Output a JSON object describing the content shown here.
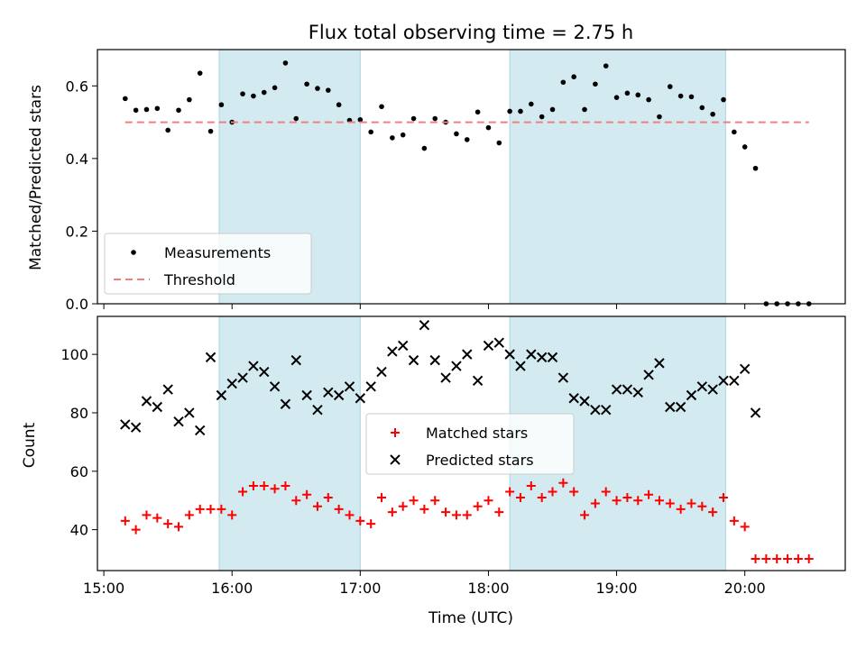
{
  "chart_data": [
    {
      "type": "scatter",
      "title": "Flux total observing time = 2.75 h",
      "ylabel": "Matched/Predicted stars",
      "xlabel": "",
      "xlim": [
        "14:57",
        "20:47"
      ],
      "ylim": [
        0,
        0.7
      ],
      "yticks": [
        "0.0",
        "0.2",
        "0.4",
        "0.6"
      ],
      "grid": false,
      "legend_position": "lower-left",
      "shaded_intervals": [
        [
          "15:54",
          "17:00"
        ],
        [
          "18:10",
          "19:51"
        ]
      ],
      "series": [
        {
          "name": "Measurements",
          "kind": "scatter",
          "marker": "dot",
          "color": "#000000",
          "points": [
            [
              "15:10",
              0.565
            ],
            [
              "15:15",
              0.533
            ],
            [
              "15:20",
              0.535
            ],
            [
              "15:25",
              0.538
            ],
            [
              "15:30",
              0.478
            ],
            [
              "15:35",
              0.533
            ],
            [
              "15:40",
              0.562
            ],
            [
              "15:45",
              0.635
            ],
            [
              "15:50",
              0.475
            ],
            [
              "15:55",
              0.548
            ],
            [
              "16:00",
              0.5
            ],
            [
              "16:05",
              0.578
            ],
            [
              "16:10",
              0.572
            ],
            [
              "16:15",
              0.582
            ],
            [
              "16:20",
              0.595
            ],
            [
              "16:25",
              0.663
            ],
            [
              "16:30",
              0.51
            ],
            [
              "16:35",
              0.605
            ],
            [
              "16:40",
              0.593
            ],
            [
              "16:45",
              0.588
            ],
            [
              "16:50",
              0.548
            ],
            [
              "16:55",
              0.505
            ],
            [
              "17:00",
              0.507
            ],
            [
              "17:05",
              0.473
            ],
            [
              "17:10",
              0.543
            ],
            [
              "17:15",
              0.457
            ],
            [
              "17:20",
              0.465
            ],
            [
              "17:25",
              0.51
            ],
            [
              "17:30",
              0.428
            ],
            [
              "17:35",
              0.51
            ],
            [
              "17:40",
              0.5
            ],
            [
              "17:45",
              0.468
            ],
            [
              "17:50",
              0.452
            ],
            [
              "17:55",
              0.528
            ],
            [
              "18:00",
              0.485
            ],
            [
              "18:05",
              0.443
            ],
            [
              "18:10",
              0.53
            ],
            [
              "18:15",
              0.53
            ],
            [
              "18:20",
              0.55
            ],
            [
              "18:25",
              0.515
            ],
            [
              "18:30",
              0.535
            ],
            [
              "18:35",
              0.61
            ],
            [
              "18:40",
              0.625
            ],
            [
              "18:45",
              0.535
            ],
            [
              "18:50",
              0.605
            ],
            [
              "18:55",
              0.655
            ],
            [
              "19:00",
              0.568
            ],
            [
              "19:05",
              0.58
            ],
            [
              "19:10",
              0.575
            ],
            [
              "19:15",
              0.562
            ],
            [
              "19:20",
              0.515
            ],
            [
              "19:25",
              0.598
            ],
            [
              "19:30",
              0.572
            ],
            [
              "19:35",
              0.57
            ],
            [
              "19:40",
              0.54
            ],
            [
              "19:45",
              0.522
            ],
            [
              "19:50",
              0.562
            ],
            [
              "19:55",
              0.473
            ],
            [
              "20:00",
              0.432
            ],
            [
              "20:05",
              0.373
            ],
            [
              "20:10",
              0.0
            ],
            [
              "20:15",
              0.0
            ],
            [
              "20:20",
              0.0
            ],
            [
              "20:25",
              0.0
            ],
            [
              "20:30",
              0.0
            ]
          ]
        },
        {
          "name": "Threshold",
          "kind": "line",
          "style": "dashed",
          "color": "#f08080",
          "points": [
            [
              "15:10",
              0.5
            ],
            [
              "20:30",
              0.5
            ]
          ]
        }
      ]
    },
    {
      "type": "scatter",
      "title": "",
      "ylabel": "Count",
      "xlabel": "Time (UTC)",
      "xlim": [
        "14:57",
        "20:47"
      ],
      "ylim": [
        26,
        113
      ],
      "yticks": [
        "40",
        "60",
        "80",
        "100"
      ],
      "xticks": [
        "15:00",
        "16:00",
        "17:00",
        "18:00",
        "19:00",
        "20:00"
      ],
      "grid": false,
      "legend_position": "center",
      "shaded_intervals": [
        [
          "15:54",
          "17:00"
        ],
        [
          "18:10",
          "19:51"
        ]
      ],
      "series": [
        {
          "name": "Matched stars",
          "kind": "scatter",
          "marker": "plus",
          "color": "#ff0000",
          "points": [
            [
              "15:10",
              43
            ],
            [
              "15:15",
              40
            ],
            [
              "15:20",
              45
            ],
            [
              "15:25",
              44
            ],
            [
              "15:30",
              42
            ],
            [
              "15:35",
              41
            ],
            [
              "15:40",
              45
            ],
            [
              "15:45",
              47
            ],
            [
              "15:50",
              47
            ],
            [
              "15:55",
              47
            ],
            [
              "16:00",
              45
            ],
            [
              "16:05",
              53
            ],
            [
              "16:10",
              55
            ],
            [
              "16:15",
              55
            ],
            [
              "16:20",
              54
            ],
            [
              "16:25",
              55
            ],
            [
              "16:30",
              50
            ],
            [
              "16:35",
              52
            ],
            [
              "16:40",
              48
            ],
            [
              "16:45",
              51
            ],
            [
              "16:50",
              47
            ],
            [
              "16:55",
              45
            ],
            [
              "17:00",
              43
            ],
            [
              "17:05",
              42
            ],
            [
              "17:10",
              51
            ],
            [
              "17:15",
              46
            ],
            [
              "17:20",
              48
            ],
            [
              "17:25",
              50
            ],
            [
              "17:30",
              47
            ],
            [
              "17:35",
              50
            ],
            [
              "17:40",
              46
            ],
            [
              "17:45",
              45
            ],
            [
              "17:50",
              45
            ],
            [
              "17:55",
              48
            ],
            [
              "18:00",
              50
            ],
            [
              "18:05",
              46
            ],
            [
              "18:10",
              53
            ],
            [
              "18:15",
              51
            ],
            [
              "18:20",
              55
            ],
            [
              "18:25",
              51
            ],
            [
              "18:30",
              53
            ],
            [
              "18:35",
              56
            ],
            [
              "18:40",
              53
            ],
            [
              "18:45",
              45
            ],
            [
              "18:50",
              49
            ],
            [
              "18:55",
              53
            ],
            [
              "19:00",
              50
            ],
            [
              "19:05",
              51
            ],
            [
              "19:10",
              50
            ],
            [
              "19:15",
              52
            ],
            [
              "19:20",
              50
            ],
            [
              "19:25",
              49
            ],
            [
              "19:30",
              47
            ],
            [
              "19:35",
              49
            ],
            [
              "19:40",
              48
            ],
            [
              "19:45",
              46
            ],
            [
              "19:50",
              51
            ],
            [
              "19:55",
              43
            ],
            [
              "20:00",
              41
            ],
            [
              "20:05",
              30
            ],
            [
              "20:10",
              30
            ],
            [
              "20:15",
              30
            ],
            [
              "20:20",
              30
            ],
            [
              "20:25",
              30
            ],
            [
              "20:30",
              30
            ]
          ]
        },
        {
          "name": "Predicted stars",
          "kind": "scatter",
          "marker": "x",
          "color": "#000000",
          "points": [
            [
              "15:10",
              76
            ],
            [
              "15:15",
              75
            ],
            [
              "15:20",
              84
            ],
            [
              "15:25",
              82
            ],
            [
              "15:30",
              88
            ],
            [
              "15:35",
              77
            ],
            [
              "15:40",
              80
            ],
            [
              "15:45",
              74
            ],
            [
              "15:50",
              99
            ],
            [
              "15:55",
              86
            ],
            [
              "16:00",
              90
            ],
            [
              "16:05",
              92
            ],
            [
              "16:10",
              96
            ],
            [
              "16:15",
              94
            ],
            [
              "16:20",
              89
            ],
            [
              "16:25",
              83
            ],
            [
              "16:30",
              98
            ],
            [
              "16:35",
              86
            ],
            [
              "16:40",
              81
            ],
            [
              "16:45",
              87
            ],
            [
              "16:50",
              86
            ],
            [
              "16:55",
              89
            ],
            [
              "17:00",
              85
            ],
            [
              "17:05",
              89
            ],
            [
              "17:10",
              94
            ],
            [
              "17:15",
              101
            ],
            [
              "17:20",
              103
            ],
            [
              "17:25",
              98
            ],
            [
              "17:30",
              110
            ],
            [
              "17:35",
              98
            ],
            [
              "17:40",
              92
            ],
            [
              "17:45",
              96
            ],
            [
              "17:50",
              100
            ],
            [
              "17:55",
              91
            ],
            [
              "18:00",
              103
            ],
            [
              "18:05",
              104
            ],
            [
              "18:10",
              100
            ],
            [
              "18:15",
              96
            ],
            [
              "18:20",
              100
            ],
            [
              "18:25",
              99
            ],
            [
              "18:30",
              99
            ],
            [
              "18:35",
              92
            ],
            [
              "18:40",
              85
            ],
            [
              "18:45",
              84
            ],
            [
              "18:50",
              81
            ],
            [
              "18:55",
              81
            ],
            [
              "19:00",
              88
            ],
            [
              "19:05",
              88
            ],
            [
              "19:10",
              87
            ],
            [
              "19:15",
              93
            ],
            [
              "19:20",
              97
            ],
            [
              "19:25",
              82
            ],
            [
              "19:30",
              82
            ],
            [
              "19:35",
              86
            ],
            [
              "19:40",
              89
            ],
            [
              "19:45",
              88
            ],
            [
              "19:50",
              91
            ],
            [
              "19:55",
              91
            ],
            [
              "20:00",
              95
            ],
            [
              "20:05",
              80
            ]
          ]
        }
      ]
    }
  ]
}
